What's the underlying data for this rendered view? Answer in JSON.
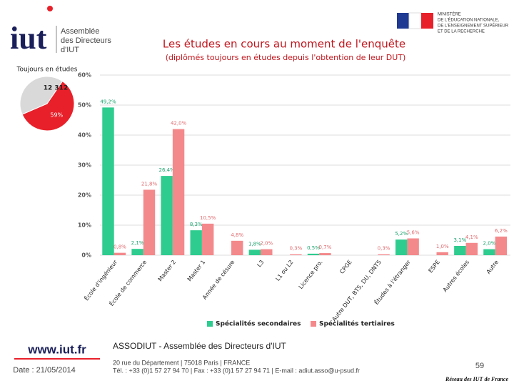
{
  "page": {
    "logo": "iut",
    "logo_text": [
      "Assemblée",
      "des Directeurs",
      "d'IUT"
    ],
    "ministry": [
      "MINISTÈRE",
      "DE L'ÉDUCATION NATIONALE,",
      "DE L'ENSEIGNEMENT SUPÉRIEUR",
      "ET DE LA RECHERCHE"
    ],
    "website": "www.iut.fr",
    "date": "Date : 21/05/2014",
    "org": "ASSODIUT - Assemblée des Directeurs d'IUT",
    "address": "20 rue du Département | 75018 Paris | FRANCE",
    "contact": "Tél. : +33 (0)1 57 27 94 70 | Fax : +33 (0)1 57 27 94 71 | E-mail : adiut.asso@u-psud.fr",
    "page_number": "59",
    "network": "Réseau des IUT de France"
  },
  "chart_data": [
    {
      "type": "bar",
      "title": "Les études en cours au moment de l'enquête",
      "subtitle": "(diplômés toujours en études depuis l'obtention de leur DUT)",
      "categories": [
        "École d'ingénieur",
        "École de commerce",
        "Master 2",
        "Master 1",
        "Année de césure",
        "L3",
        "L1 ou L2",
        "Licence pro.",
        "CPGE",
        "Autre DUT, BTS, DU, DNTS",
        "Études à l'étranger",
        "ESPE",
        "Autres écoles",
        "Autre"
      ],
      "series": [
        {
          "name": "Spécialités secondaires",
          "color": "#2ecc8f",
          "values": [
            49.2,
            2.1,
            26.4,
            8.3,
            null,
            1.8,
            null,
            0.5,
            null,
            null,
            5.2,
            null,
            3.1,
            2.0
          ],
          "value_labels": [
            "49,2%",
            "2,1%",
            "26,4%",
            "8,3%",
            null,
            "1,8%",
            null,
            "0,5%",
            null,
            null,
            "5,2%",
            null,
            "3,1%",
            "2,0%"
          ]
        },
        {
          "name": "Spécialités tertiaires",
          "color": "#f4898c",
          "values": [
            0.8,
            21.8,
            42.0,
            10.5,
            4.8,
            2.0,
            0.3,
            0.7,
            null,
            0.3,
            5.6,
            1.0,
            4.1,
            6.2
          ],
          "value_labels": [
            "0,8%",
            "21,8%",
            "42,0%",
            "10,5%",
            "4,8%",
            "2,0%",
            "0,3%",
            "0,7%",
            null,
            "0,3%",
            "5,6%",
            "1,0%",
            "4,1%",
            "6,2%"
          ]
        }
      ],
      "ylim": [
        0,
        60
      ],
      "yticks": [
        {
          "value": 0,
          "label": "0%"
        },
        {
          "value": 10,
          "label": "10%"
        },
        {
          "value": 20,
          "label": "20%"
        },
        {
          "value": 30,
          "label": "30%"
        },
        {
          "value": 40,
          "label": "40%"
        },
        {
          "value": 50,
          "label": "50%"
        },
        {
          "value": 60,
          "label": "60%"
        }
      ],
      "legend": "bottom"
    },
    {
      "type": "pie",
      "title": "Toujours en études",
      "annotation": "12 312",
      "values": [
        59,
        41
      ],
      "value_labels": [
        "59%",
        null
      ],
      "colors": [
        "#e8202a",
        "#d9d9d9"
      ]
    }
  ]
}
